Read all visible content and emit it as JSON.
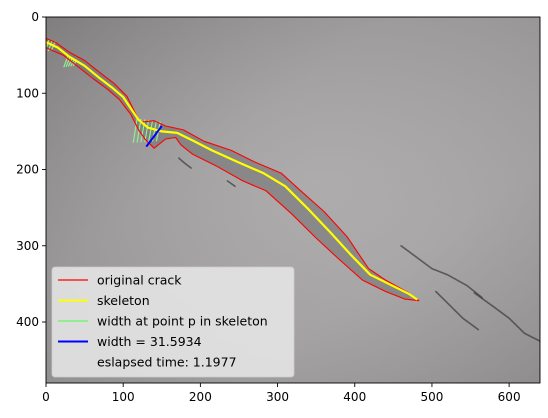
{
  "chart_data": {
    "type": "image",
    "title": "",
    "xlabel": "",
    "ylabel": "",
    "xlim": [
      0,
      640
    ],
    "ylim": [
      480,
      0
    ],
    "xticks": [
      0,
      100,
      200,
      300,
      400,
      500,
      600
    ],
    "yticks": [
      0,
      100,
      200,
      300,
      400
    ],
    "series": [
      {
        "name": "original crack",
        "color": "#ff0000",
        "upper": [
          [
            0,
            28
          ],
          [
            12,
            33
          ],
          [
            30,
            46
          ],
          [
            50,
            57
          ],
          [
            70,
            73
          ],
          [
            88,
            87
          ],
          [
            105,
            104
          ],
          [
            115,
            125
          ],
          [
            122,
            138
          ],
          [
            140,
            136
          ],
          [
            155,
            143
          ],
          [
            178,
            148
          ],
          [
            205,
            163
          ],
          [
            240,
            175
          ],
          [
            270,
            190
          ],
          [
            305,
            205
          ],
          [
            330,
            228
          ],
          [
            360,
            255
          ],
          [
            390,
            288
          ],
          [
            418,
            330
          ],
          [
            440,
            345
          ],
          [
            470,
            362
          ],
          [
            483,
            372
          ]
        ],
        "lower": [
          [
            483,
            372
          ],
          [
            465,
            370
          ],
          [
            440,
            360
          ],
          [
            410,
            345
          ],
          [
            380,
            318
          ],
          [
            350,
            290
          ],
          [
            318,
            258
          ],
          [
            285,
            228
          ],
          [
            255,
            215
          ],
          [
            220,
            195
          ],
          [
            190,
            180
          ],
          [
            175,
            168
          ],
          [
            168,
            158
          ],
          [
            155,
            160
          ],
          [
            140,
            172
          ],
          [
            128,
            160
          ],
          [
            120,
            148
          ],
          [
            110,
            128
          ],
          [
            95,
            108
          ],
          [
            80,
            95
          ],
          [
            60,
            80
          ],
          [
            40,
            64
          ],
          [
            22,
            50
          ],
          [
            8,
            44
          ],
          [
            0,
            40
          ]
        ]
      },
      {
        "name": "skeleton",
        "color": "#ffff00",
        "points": [
          [
            0,
            33
          ],
          [
            15,
            40
          ],
          [
            30,
            52
          ],
          [
            50,
            64
          ],
          [
            68,
            79
          ],
          [
            85,
            92
          ],
          [
            100,
            105
          ],
          [
            112,
            123
          ],
          [
            120,
            135
          ],
          [
            132,
            145
          ],
          [
            150,
            150
          ],
          [
            170,
            152
          ],
          [
            190,
            162
          ],
          [
            215,
            175
          ],
          [
            248,
            190
          ],
          [
            282,
            205
          ],
          [
            310,
            222
          ],
          [
            340,
            252
          ],
          [
            368,
            282
          ],
          [
            395,
            312
          ],
          [
            420,
            338
          ],
          [
            448,
            352
          ],
          [
            470,
            363
          ],
          [
            480,
            370
          ]
        ]
      },
      {
        "name": "width at point p in skeleton",
        "color": "#90ee90",
        "groups": [
          {
            "x": [
              0,
              12
            ],
            "top": 28,
            "bottom": 46,
            "count": 4
          },
          {
            "x": [
              28,
              40
            ],
            "top": 52,
            "bottom": 66,
            "count": 5
          },
          {
            "x": [
              118,
              148
            ],
            "top": 133,
            "bottom": 165,
            "count": 7
          }
        ]
      },
      {
        "name": "width = 31.5934",
        "color": "#0000ff",
        "points": [
          [
            150,
            143
          ],
          [
            130,
            170
          ]
        ]
      }
    ],
    "legend": {
      "placement": "lower left",
      "entries": [
        {
          "label": "original crack",
          "color": "#ff0000",
          "style": "line-thin"
        },
        {
          "label": "skeleton",
          "color": "#ffff00",
          "style": "line-thick"
        },
        {
          "label": "width at point p in skeleton",
          "color": "#90ee90",
          "style": "line-thick"
        },
        {
          "label": "width = 31.5934",
          "color": "#0000ff",
          "style": "line-thick"
        },
        {
          "label": "eslapsed time: 1.1977",
          "color": "none",
          "style": "none"
        }
      ]
    },
    "background": {
      "base_color": "#a3a1a2",
      "minor_cracks": [
        {
          "name": "right-crack-1",
          "points": [
            [
              460,
              300
            ],
            [
              480,
              315
            ],
            [
              500,
              330
            ],
            [
              520,
              338
            ],
            [
              545,
              352
            ],
            [
              565,
              368
            ]
          ]
        },
        {
          "name": "right-crack-2",
          "points": [
            [
              555,
              362
            ],
            [
              580,
              380
            ],
            [
              600,
              395
            ],
            [
              620,
              415
            ],
            [
              640,
              425
            ]
          ]
        },
        {
          "name": "right-crack-3",
          "points": [
            [
              505,
              360
            ],
            [
              520,
              375
            ],
            [
              540,
              395
            ],
            [
              560,
              410
            ]
          ]
        },
        {
          "name": "small-crack-1",
          "points": [
            [
              172,
              185
            ],
            [
              180,
              192
            ],
            [
              188,
              198
            ]
          ]
        },
        {
          "name": "small-crack-2",
          "points": [
            [
              235,
              215
            ],
            [
              245,
              222
            ]
          ]
        }
      ]
    }
  }
}
